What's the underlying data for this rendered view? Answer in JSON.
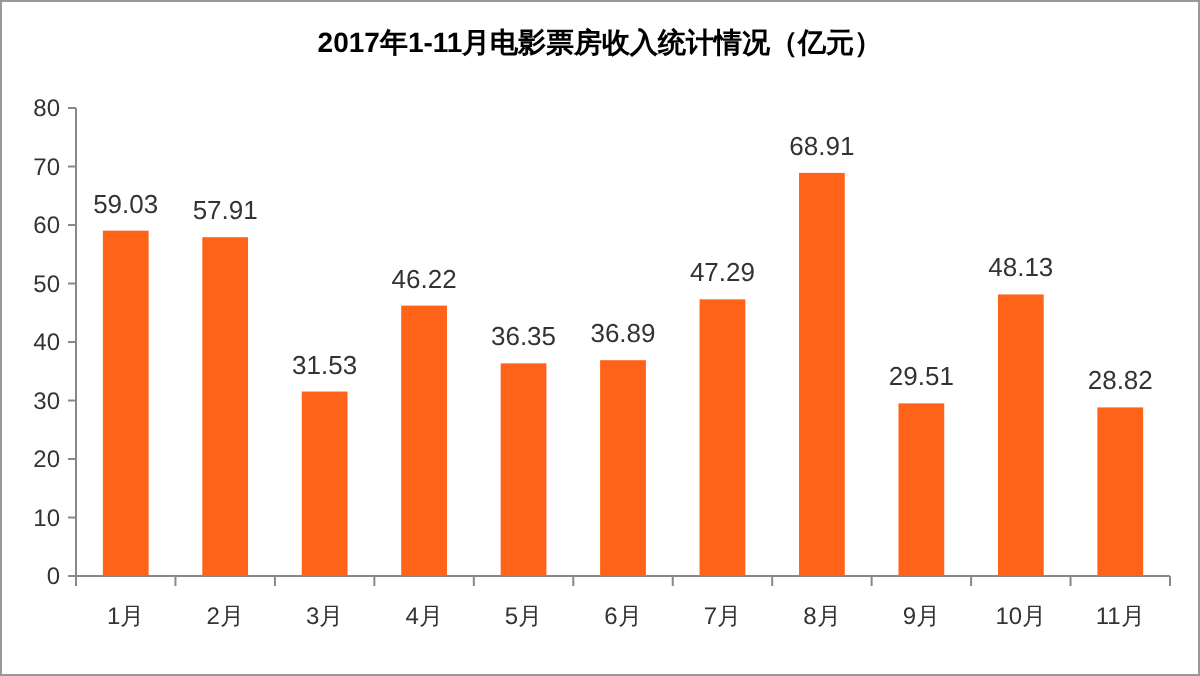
{
  "chart_data": {
    "type": "bar",
    "title": "2017年1-11月电影票房收入统计情况（亿元）",
    "categories": [
      "1月",
      "2月",
      "3月",
      "4月",
      "5月",
      "6月",
      "7月",
      "8月",
      "9月",
      "10月",
      "11月"
    ],
    "values": [
      59.03,
      57.91,
      31.53,
      46.22,
      36.35,
      36.89,
      47.29,
      68.91,
      29.51,
      48.13,
      28.82
    ],
    "color": "#ff6319",
    "ylim": [
      0,
      80
    ],
    "yticks": [
      0,
      10,
      20,
      30,
      40,
      50,
      60,
      70,
      80
    ],
    "grid": false,
    "data_labels": true
  }
}
